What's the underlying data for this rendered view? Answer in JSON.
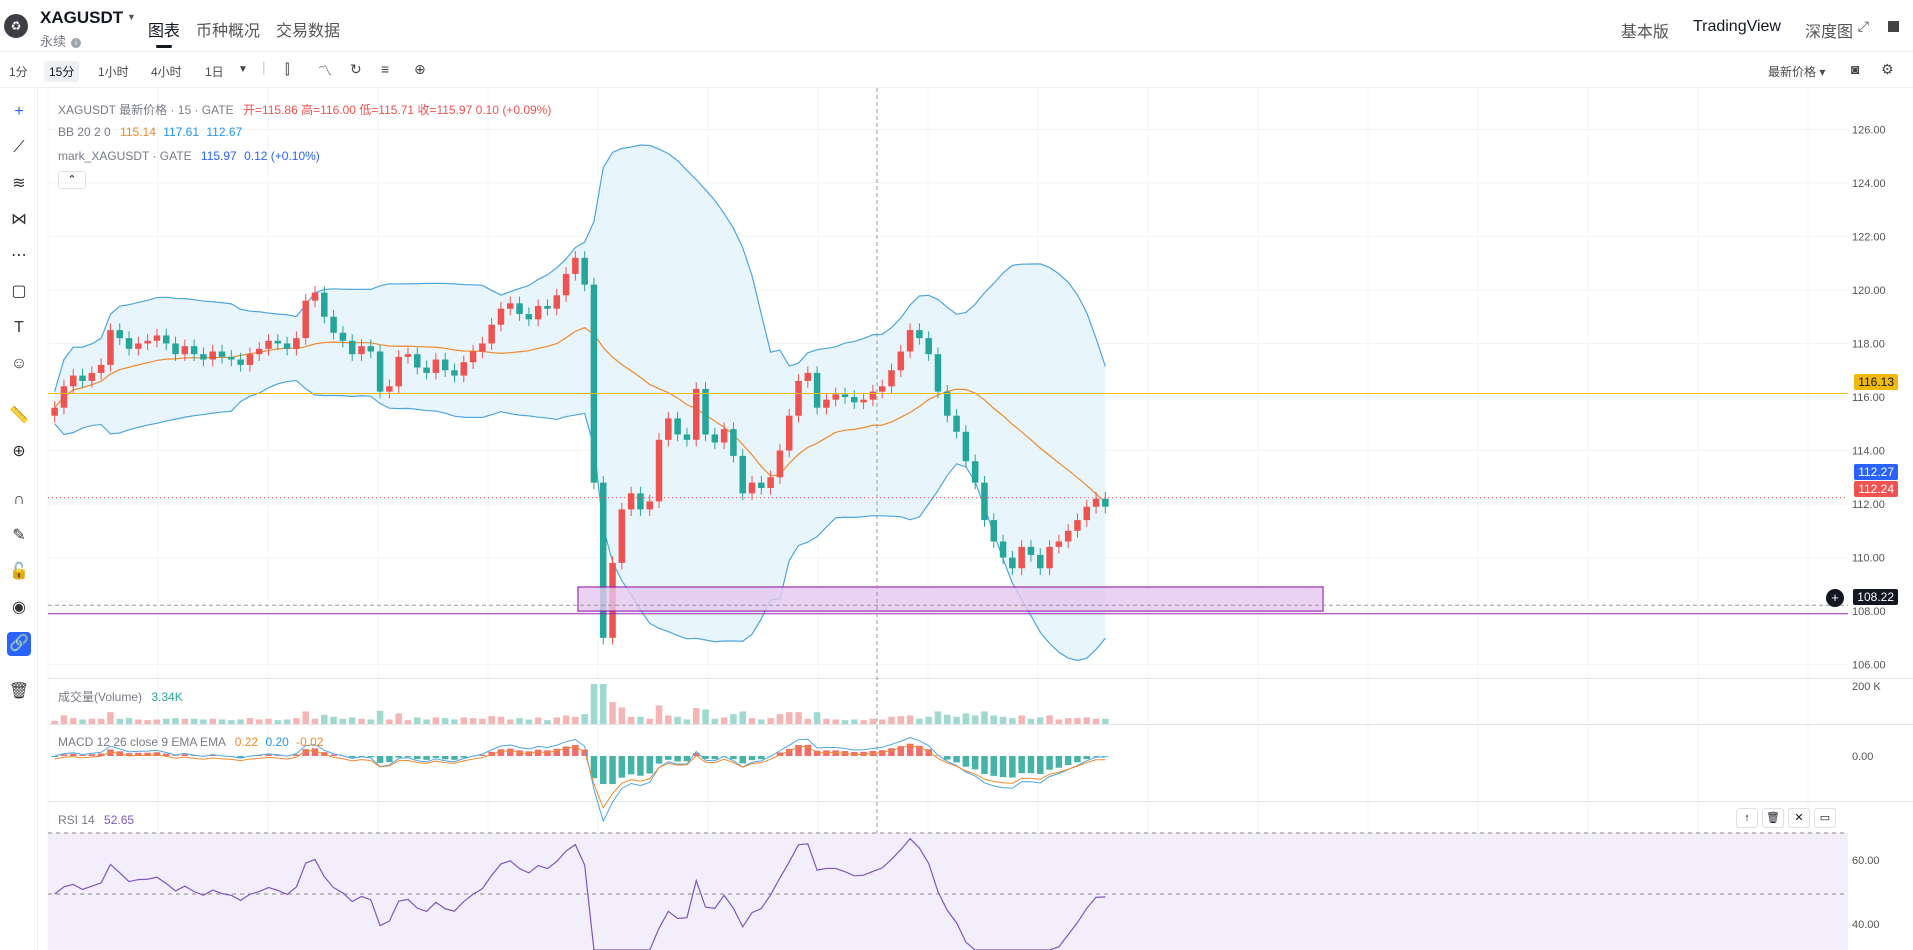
{
  "header": {
    "symbol": "XAGUSDT",
    "subtitle": "永续",
    "tabs": [
      "图表",
      "币种概况",
      "交易数据"
    ],
    "right_tabs": [
      "基本版",
      "TradingView",
      "深度图"
    ]
  },
  "toolbar": {
    "intervals": [
      "1分",
      "15分",
      "1小时",
      "4小时",
      "1日"
    ],
    "price_type": "最新价格"
  },
  "legend": {
    "main_title": "XAGUSDT 最新价格 · 15 · GATE",
    "o_label": "开=",
    "o": "115.86",
    "h_label": "高=",
    "h": "116.00",
    "l_label": "低=",
    "l": "115.71",
    "c_label": "收=",
    "c": "115.97",
    "chg": "0.10 (+0.09%)",
    "bb_label": "BB 20 2 0",
    "bb_mid": "115.14",
    "bb_up": "117.61",
    "bb_low": "112.67",
    "mark_label": "mark_XAGUSDT · GATE",
    "mark_val": "115.97",
    "mark_chg": "0.12 (+0.10%)",
    "volume_label": "成交量(Volume)",
    "volume_val": "3.34K",
    "macd_label": "MACD 12 26 close 9 EMA EMA",
    "macd_v1": "0.22",
    "macd_v2": "0.20",
    "macd_v3": "-0.02",
    "rsi_label": "RSI 14",
    "rsi_val": "52.65"
  },
  "axis": {
    "price_ticks": [
      "126.00",
      "124.00",
      "122.00",
      "120.00",
      "118.00",
      "116.00",
      "114.00",
      "112.00",
      "110.00",
      "108.00",
      "106.00"
    ],
    "volume_tick": "200 K",
    "macd_tick": "0.00",
    "rsi_ticks": [
      "60.00",
      "40.00"
    ]
  },
  "badges": {
    "yellow_line": "116.13",
    "blue": "112.27",
    "red": "112.24",
    "crosshair": "108.22"
  },
  "colors": {
    "up": "#ef5350",
    "down": "#26a69a",
    "bb": "#4da6de",
    "bb_fill": "#e3f2fb",
    "ma": "#ef8a2c",
    "yellow": "#f0b90b",
    "purple": "#9c27b0",
    "rsi": "#7e57c2"
  },
  "chart_data": {
    "type": "candlestick",
    "title": "XAGUSDT 最新价格 · 15 · GATE",
    "ylim": [
      105.5,
      126.5
    ],
    "close": [
      115.6,
      116.4,
      116.8,
      116.6,
      116.9,
      117.2,
      118.5,
      118.2,
      117.8,
      118.0,
      118.1,
      118.3,
      118.0,
      117.6,
      117.9,
      117.6,
      117.4,
      117.7,
      117.5,
      117.4,
      117.2,
      117.6,
      117.8,
      118.1,
      118.0,
      117.8,
      118.2,
      119.6,
      119.9,
      119.0,
      118.4,
      118.1,
      117.6,
      117.9,
      117.7,
      116.2,
      116.4,
      117.5,
      117.6,
      117.1,
      116.9,
      117.4,
      117.0,
      116.8,
      117.3,
      117.7,
      118.0,
      118.7,
      119.3,
      119.5,
      119.1,
      118.9,
      119.4,
      119.3,
      119.8,
      120.6,
      121.2,
      120.2,
      112.8,
      107.0,
      109.8,
      111.8,
      112.4,
      111.8,
      112.1,
      114.4,
      115.2,
      114.6,
      114.4,
      116.3,
      114.6,
      114.3,
      114.8,
      113.8,
      112.4,
      112.8,
      112.6,
      113.0,
      114.0,
      115.3,
      116.6,
      116.9,
      115.6,
      115.9,
      116.1,
      116.0,
      115.8,
      115.9,
      116.2,
      116.4,
      117.0,
      117.7,
      118.5,
      118.2,
      117.6,
      116.2,
      115.3,
      114.7,
      113.6,
      112.8,
      111.4,
      110.6,
      110.0,
      109.6,
      110.4,
      110.1,
      109.6,
      110.4,
      110.6,
      111.0,
      111.4,
      111.9,
      112.2,
      111.9
    ],
    "volume_note": "volume bars follow candles, peak near crash"
  }
}
